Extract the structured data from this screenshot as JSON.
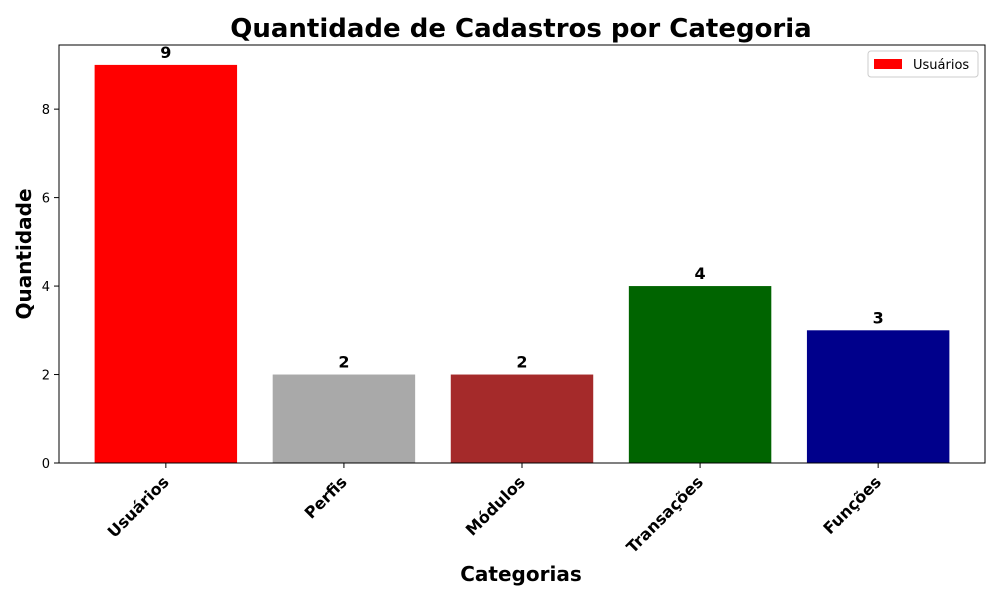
{
  "chart_data": {
    "type": "bar",
    "title": "Quantidade de Cadastros por Categoria",
    "xlabel": "Categorias",
    "ylabel": "Quantidade",
    "categories": [
      "Usuários",
      "Perfis",
      "Módulos",
      "Transações",
      "Funções"
    ],
    "values": [
      9,
      2,
      2,
      4,
      3
    ],
    "colors": [
      "#ff0000",
      "#a9a9a9",
      "#a52a2a",
      "#006400",
      "#00008b"
    ],
    "ylim": [
      0,
      9.45
    ],
    "yticks": [
      0,
      2,
      4,
      6,
      8
    ],
    "grid": false,
    "legend": {
      "placement": "top-right",
      "entries": [
        {
          "label": "Usuários",
          "color": "#ff0000"
        }
      ]
    }
  }
}
